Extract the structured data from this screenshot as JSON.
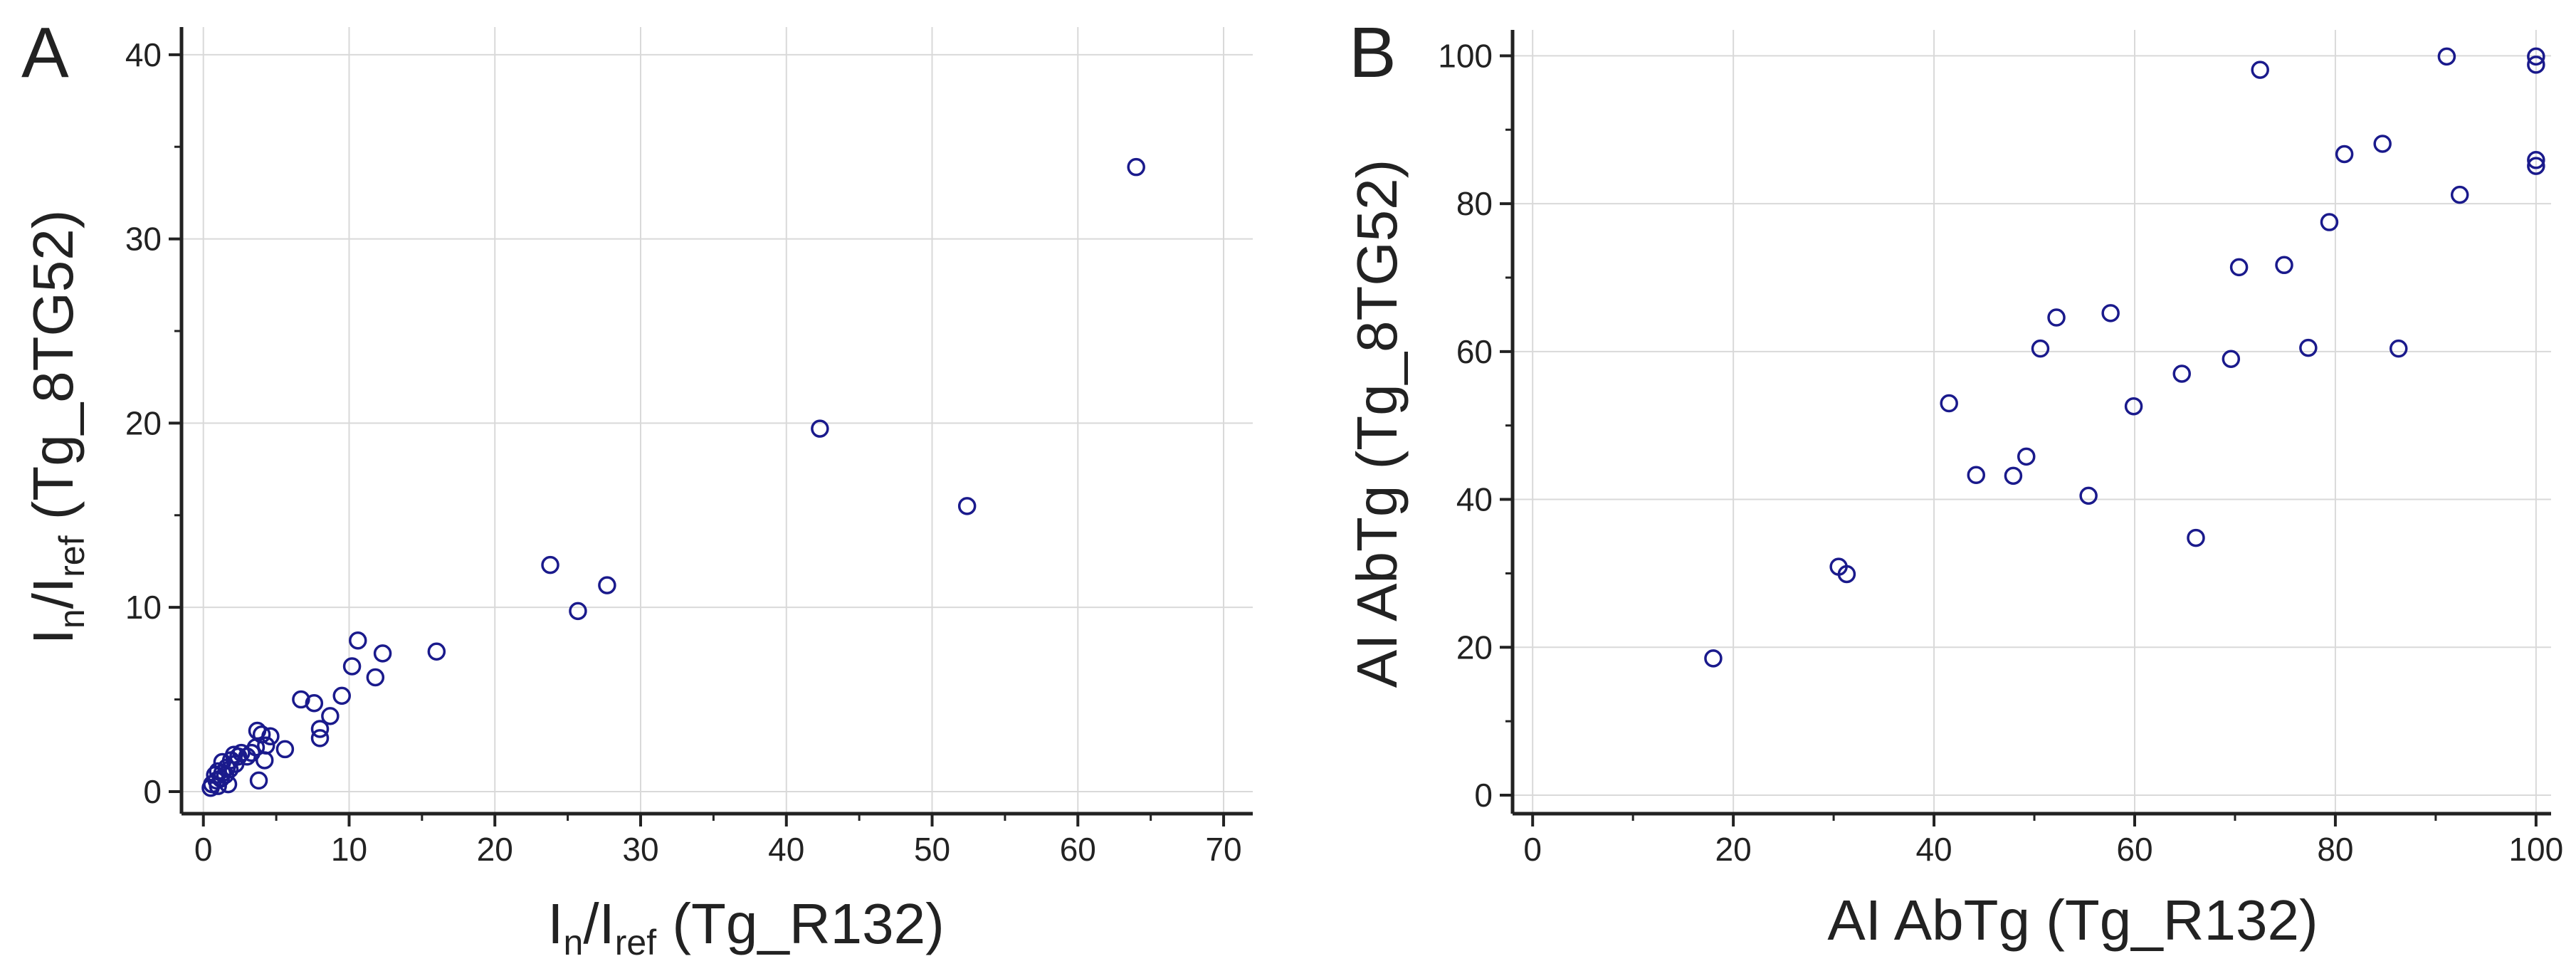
{
  "colors": {
    "marker": "#1a1a8c",
    "grid": "#d9d9d9",
    "axis": "#222222"
  },
  "chart_data": [
    {
      "panel": "A",
      "type": "scatter",
      "xlabel": {
        "base": "I",
        "sub1": "n",
        "sep": "/I",
        "sub2": "ref",
        "suffix": " (Tg_R132)"
      },
      "ylabel": {
        "base": "I",
        "sub1": "n",
        "sep": "/I",
        "sub2": "ref",
        "suffix": " (Tg_8TG52)"
      },
      "xlim": [
        -1.5,
        72
      ],
      "ylim": [
        -1.2,
        41.5
      ],
      "xticks": [
        0,
        10,
        20,
        30,
        40,
        50,
        60,
        70
      ],
      "yticks": [
        0,
        10,
        20,
        30,
        40
      ],
      "grid": true,
      "points": [
        [
          64.0,
          33.9
        ],
        [
          42.3,
          19.7
        ],
        [
          52.4,
          15.5
        ],
        [
          23.8,
          12.3
        ],
        [
          27.7,
          11.2
        ],
        [
          25.7,
          9.8
        ],
        [
          16.0,
          7.6
        ],
        [
          12.3,
          7.5
        ],
        [
          10.6,
          8.2
        ],
        [
          10.2,
          6.8
        ],
        [
          11.8,
          6.2
        ],
        [
          9.5,
          5.2
        ],
        [
          8.7,
          4.1
        ],
        [
          7.6,
          4.8
        ],
        [
          6.7,
          5.0
        ],
        [
          8.0,
          3.4
        ],
        [
          8.0,
          2.9
        ],
        [
          5.6,
          2.3
        ],
        [
          4.6,
          3.0
        ],
        [
          4.3,
          2.5
        ],
        [
          4.2,
          1.7
        ],
        [
          3.7,
          3.3
        ],
        [
          4.0,
          3.1
        ],
        [
          3.6,
          2.4
        ],
        [
          3.3,
          2.1
        ],
        [
          3.0,
          1.9
        ],
        [
          3.8,
          0.6
        ],
        [
          2.6,
          2.1
        ],
        [
          2.4,
          1.9
        ],
        [
          2.2,
          1.5
        ],
        [
          2.1,
          2.0
        ],
        [
          1.9,
          1.7
        ],
        [
          1.8,
          1.2
        ],
        [
          1.6,
          1.3
        ],
        [
          1.5,
          0.9
        ],
        [
          1.3,
          1.0
        ],
        [
          1.2,
          0.7
        ],
        [
          1.0,
          1.1
        ],
        [
          0.9,
          0.6
        ],
        [
          0.8,
          0.9
        ],
        [
          0.6,
          0.4
        ],
        [
          0.5,
          0.2
        ],
        [
          1.0,
          0.3
        ],
        [
          1.7,
          0.4
        ],
        [
          1.3,
          1.6
        ]
      ]
    },
    {
      "panel": "B",
      "type": "scatter",
      "xlabel": "AI AbTg (Tg_R132)",
      "ylabel": "AI AbTg (Tg_8TG52)",
      "xlim": [
        -2,
        101.5
      ],
      "ylim": [
        -2.5,
        103.5
      ],
      "xticks": [
        0,
        20,
        40,
        60,
        80,
        100
      ],
      "yticks": [
        0,
        20,
        40,
        60,
        80,
        100
      ],
      "grid": true,
      "points": [
        [
          18.0,
          18.5
        ],
        [
          30.5,
          30.9
        ],
        [
          31.3,
          29.9
        ],
        [
          41.5,
          53.0
        ],
        [
          44.2,
          43.3
        ],
        [
          47.9,
          43.2
        ],
        [
          49.2,
          45.8
        ],
        [
          50.6,
          60.4
        ],
        [
          52.2,
          64.6
        ],
        [
          55.4,
          40.5
        ],
        [
          57.6,
          65.2
        ],
        [
          59.9,
          52.6
        ],
        [
          64.7,
          57.0
        ],
        [
          66.1,
          34.8
        ],
        [
          69.6,
          59.0
        ],
        [
          70.4,
          71.4
        ],
        [
          72.5,
          98.1
        ],
        [
          74.9,
          71.7
        ],
        [
          77.3,
          60.5
        ],
        [
          79.4,
          77.5
        ],
        [
          80.9,
          86.7
        ],
        [
          84.7,
          88.1
        ],
        [
          86.3,
          60.4
        ],
        [
          91.1,
          99.9
        ],
        [
          92.4,
          81.2
        ],
        [
          100.0,
          99.9
        ],
        [
          100.0,
          98.8
        ],
        [
          100.0,
          85.9
        ],
        [
          100.0,
          85.1
        ]
      ]
    }
  ]
}
